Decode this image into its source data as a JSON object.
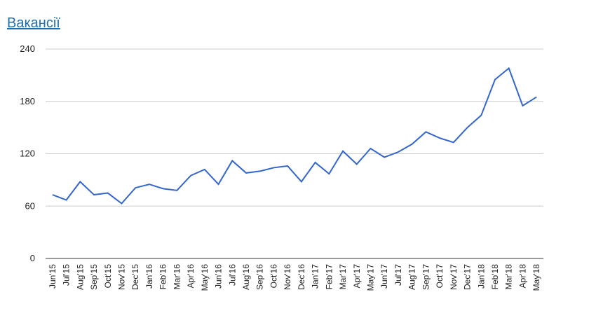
{
  "title": "Вакансії",
  "chart_data": {
    "type": "line",
    "categories": [
      "Jun'15",
      "Jul'15",
      "Aug'15",
      "Sep'15",
      "Oct'15",
      "Nov'15",
      "Dec'15",
      "Jan'16",
      "Feb'16",
      "Mar'16",
      "Apr'16",
      "May'16",
      "Jun'16",
      "Jul'16",
      "Aug'16",
      "Sep'16",
      "Oct'16",
      "Nov'16",
      "Dec'16",
      "Jan'17",
      "Feb'17",
      "Mar'17",
      "Apr'17",
      "May'17",
      "Jun'17",
      "Jul'17",
      "Aug'17",
      "Sep'17",
      "Oct'17",
      "Nov'17",
      "Dec'17",
      "Jan'18",
      "Feb'18",
      "Mar'18",
      "Apr'18",
      "May'18"
    ],
    "values": [
      73,
      67,
      88,
      73,
      75,
      63,
      81,
      85,
      80,
      78,
      95,
      102,
      85,
      112,
      98,
      100,
      104,
      106,
      88,
      110,
      97,
      123,
      108,
      126,
      116,
      122,
      131,
      145,
      138,
      133,
      150,
      164,
      205,
      218,
      175,
      185
    ],
    "color": "#3366cc",
    "ylim": [
      0,
      240
    ],
    "yticks": [
      0,
      60,
      120,
      180,
      240
    ],
    "grid": true
  }
}
